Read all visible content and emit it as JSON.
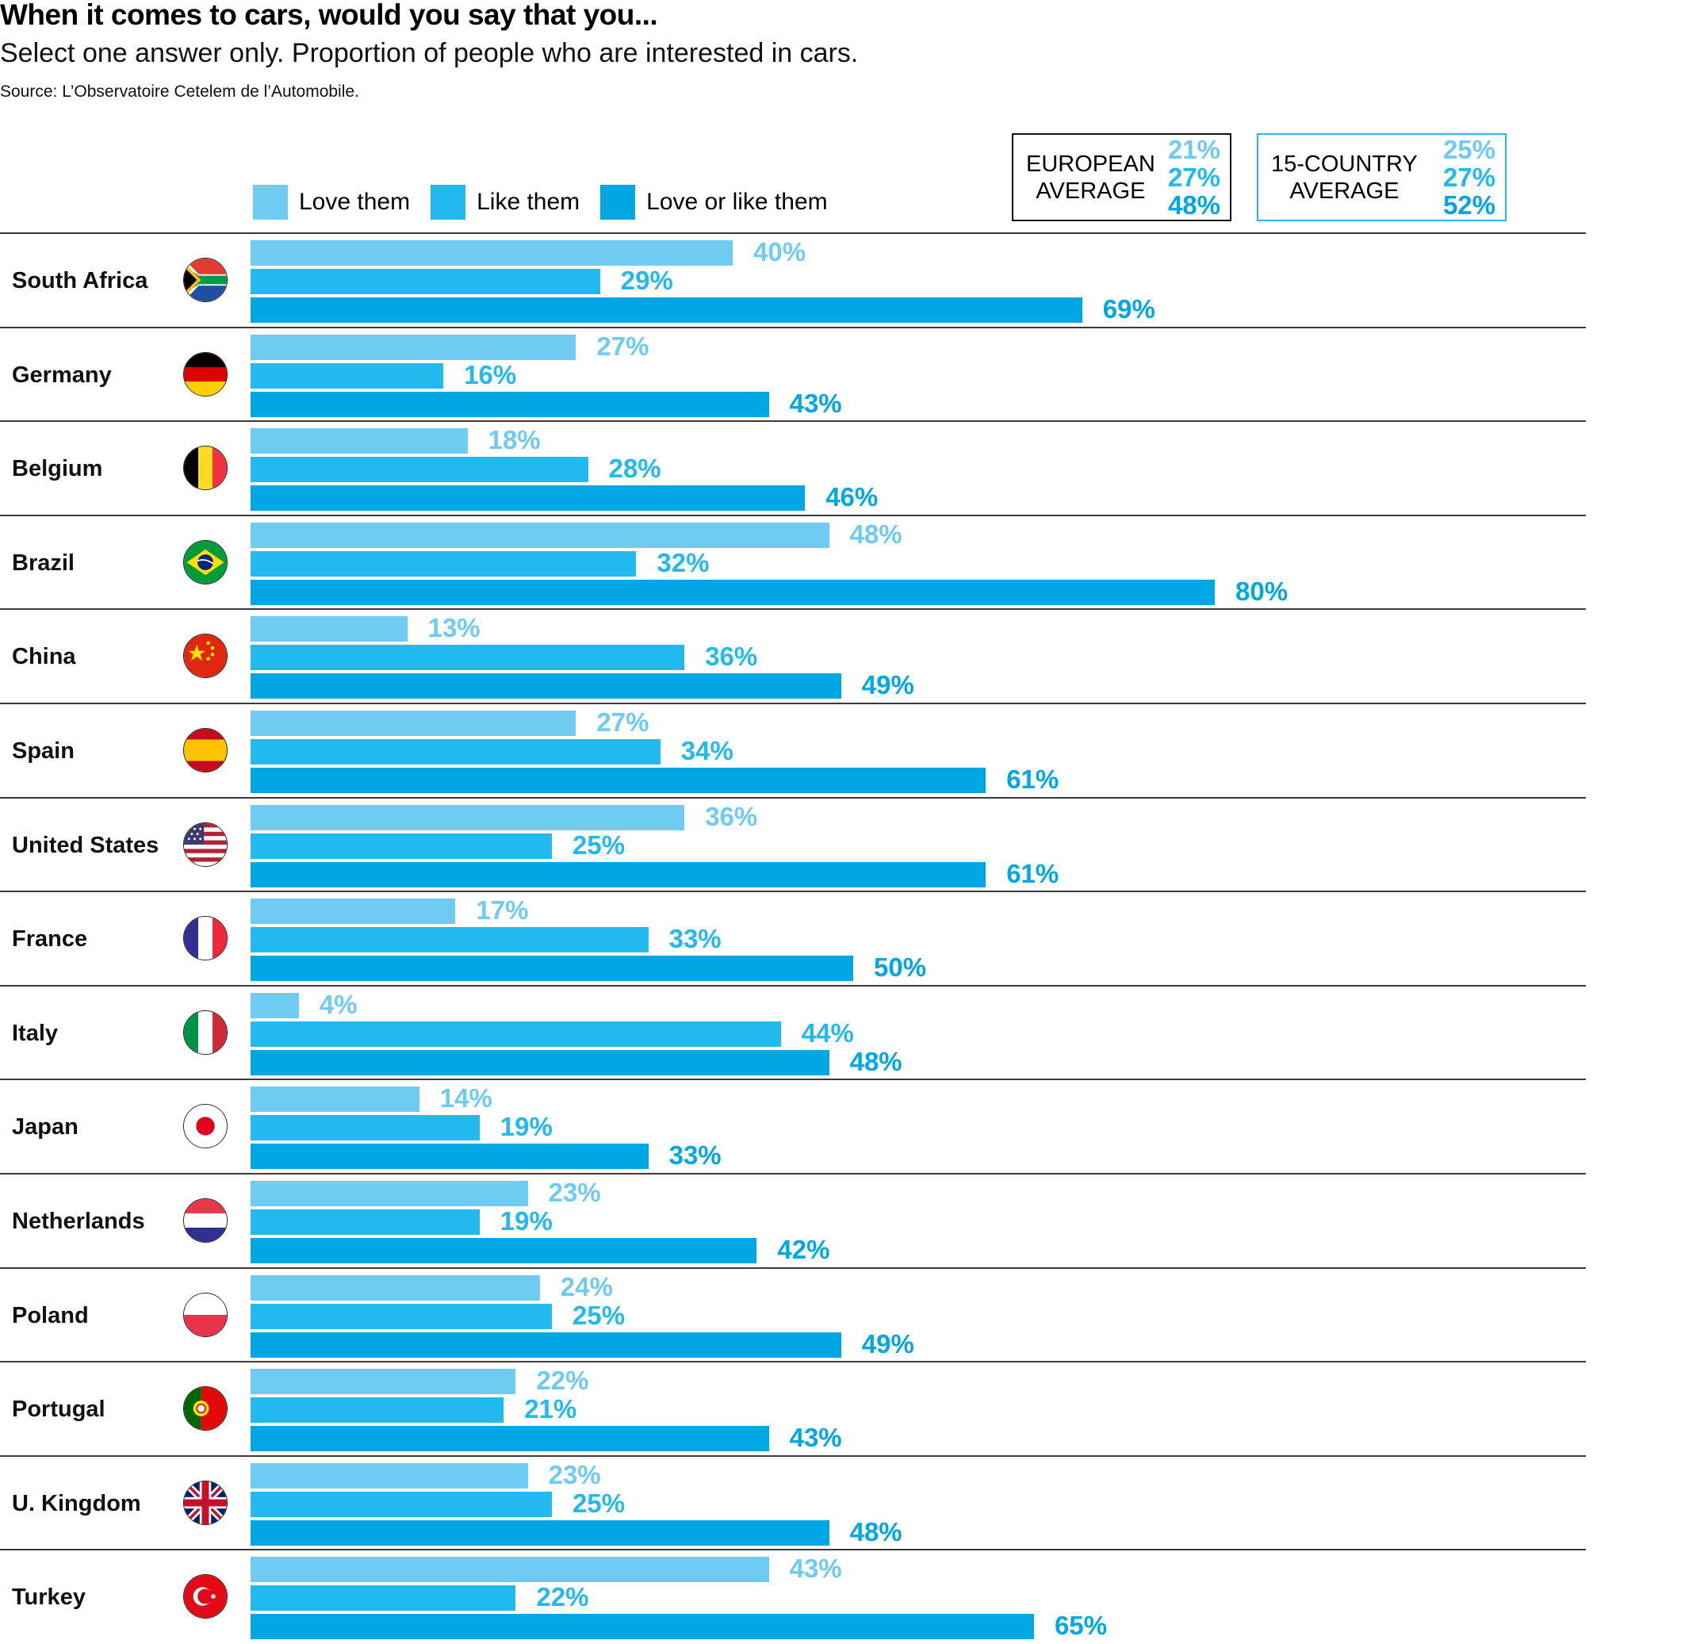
{
  "header": {
    "title": "When it comes to cars, would you say that you...",
    "subtitle": "Select one answer only. Proportion of people who are interested in cars.",
    "source": "Source: L’Observatoire Cetelem de l’Automobile."
  },
  "colors": {
    "love": "#6ecbf2",
    "like": "#22b9ee",
    "love_or_like": "#00a7e4",
    "text": "#000000",
    "separator": "#3a3a3a"
  },
  "legend": [
    {
      "label": "Love them",
      "series": "love"
    },
    {
      "label": "Like them",
      "series": "like"
    },
    {
      "label": "Love or like them",
      "series": "love_or_like"
    }
  ],
  "averages": [
    {
      "label_line1": "EUROPEAN",
      "label_line2": "AVERAGE",
      "love": "21%",
      "like": "27%",
      "love_or_like": "48%"
    },
    {
      "label_line1": "15-COUNTRY",
      "label_line2": "AVERAGE",
      "love": "25%",
      "like": "27%",
      "love_or_like": "52%"
    }
  ],
  "chart_data": {
    "type": "bar",
    "orientation": "horizontal",
    "title": "When it comes to cars, would you say that you...",
    "subtitle": "Select one answer only. Proportion of people who are interested in cars.",
    "source": "Source: L’Observatoire Cetelem de l’Automobile.",
    "unit": "%",
    "xlim": [
      0,
      100
    ],
    "grid": false,
    "legend_position": "top",
    "categories": [
      "South Africa",
      "Germany",
      "Belgium",
      "Brazil",
      "China",
      "Spain",
      "United States",
      "France",
      "Italy",
      "Japan",
      "Netherlands",
      "Poland",
      "Portugal",
      "U. Kingdom",
      "Turkey"
    ],
    "flags": [
      "south-africa",
      "germany",
      "belgium",
      "brazil",
      "china",
      "spain",
      "united-states",
      "france",
      "italy",
      "japan",
      "netherlands",
      "poland",
      "portugal",
      "united-kingdom",
      "turkey"
    ],
    "series": [
      {
        "name": "Love them",
        "key": "love",
        "values": [
          40,
          27,
          18,
          48,
          13,
          27,
          36,
          17,
          4,
          14,
          23,
          24,
          22,
          23,
          43
        ]
      },
      {
        "name": "Like them",
        "key": "like",
        "values": [
          29,
          16,
          28,
          32,
          36,
          34,
          25,
          33,
          44,
          19,
          19,
          25,
          21,
          25,
          22
        ]
      },
      {
        "name": "Love or like them",
        "key": "love_or_like",
        "values": [
          69,
          43,
          46,
          80,
          49,
          61,
          61,
          50,
          48,
          33,
          42,
          49,
          43,
          48,
          65
        ]
      }
    ],
    "reference_values": [
      {
        "name": "European average",
        "love": 21,
        "like": 27,
        "love_or_like": 48
      },
      {
        "name": "15-country average",
        "love": 25,
        "like": 27,
        "love_or_like": 52
      }
    ]
  }
}
